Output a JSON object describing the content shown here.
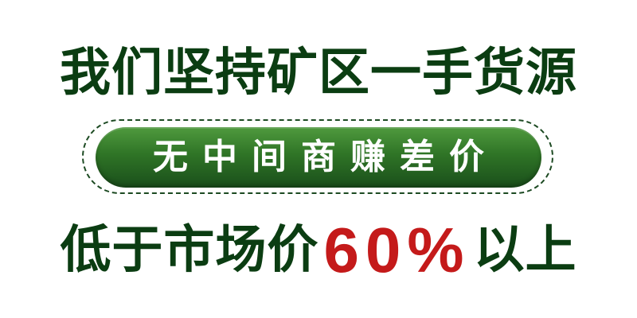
{
  "headline": "我们坚持矿区一手货源",
  "badge": {
    "text": "无中间商赚差价"
  },
  "bottom": {
    "prefix": "低于市场价",
    "highlight": "60%",
    "suffix": "以上"
  },
  "colors": {
    "dark_green_text": "#0b3d12",
    "badge_green_top": "#4f9a3e",
    "badge_green_bottom": "#1a4f1b",
    "badge_text": "#ffffff",
    "highlight_red": "#c41a1a",
    "background": "#ffffff"
  }
}
